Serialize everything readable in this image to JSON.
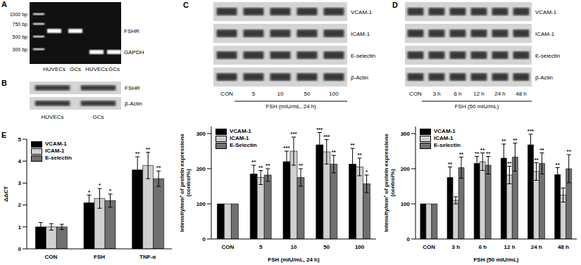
{
  "gels": [
    {
      "panel": "A",
      "ladder": [
        "1000 bp",
        "750 bp",
        "500 bp",
        "300 bp"
      ],
      "bands": [
        "FSHR",
        "GAPDH"
      ],
      "lanes": [
        "HUVECs",
        "GCs",
        "HUVECs",
        "GCs"
      ]
    },
    {
      "panel": "B",
      "rows": [
        "FSHR",
        "β-Actin"
      ],
      "lanes": [
        "HUVECs",
        "GCs"
      ]
    },
    {
      "panel": "C",
      "rows": [
        "VCAM-1",
        "ICAM-1",
        "E-selectin",
        "β-Actin"
      ],
      "lanes": [
        "CON",
        "5",
        "10",
        "50",
        "100"
      ],
      "caption": "FSH (mIU/mL, 24 h)"
    },
    {
      "panel": "D",
      "rows": [
        "VCAM-1",
        "ICAM-1",
        "E-selectin",
        "β-Actin"
      ],
      "lanes": [
        "CON",
        "3 h",
        "6 h",
        "12 h",
        "24 h",
        "48 h"
      ],
      "caption": "FSH (50 mIU/mL)"
    }
  ],
  "chart_data": [
    {
      "type": "bar",
      "title": "E",
      "y_label": "ΔΔCT",
      "categories": [
        "CON",
        "FSH",
        "TNF-α"
      ],
      "ylim": [
        0,
        5
      ],
      "yticks": [
        0,
        1,
        2,
        3,
        4,
        5
      ],
      "legend": "top-left",
      "series": [
        {
          "name": "VCAM-1",
          "color": "#000000",
          "values": [
            1,
            2.1,
            3.6
          ],
          "errors": [
            0.2,
            0.35,
            0.6
          ],
          "significance": [
            null,
            "*",
            "**"
          ]
        },
        {
          "name": "ICAM-1",
          "color": "#d0d0d0",
          "values": [
            1,
            2.3,
            3.8
          ],
          "errors": [
            0.15,
            0.45,
            0.6
          ],
          "significance": [
            null,
            "*",
            "**"
          ]
        },
        {
          "name": "E-selectin",
          "color": "#707070",
          "values": [
            1,
            2.2,
            3.2
          ],
          "errors": [
            0.12,
            0.3,
            0.35
          ],
          "significance": [
            null,
            "*",
            "**"
          ]
        }
      ]
    },
    {
      "type": "bar",
      "y_label": [
        "Intensity/mm² of protein expressions",
        "(control%)"
      ],
      "x_label": "FSH (mIU/mL, 24 h)",
      "categories": [
        "CON",
        "5",
        "10",
        "50",
        "100"
      ],
      "ylim": [
        0,
        320
      ],
      "yticks": [
        0,
        100,
        200,
        300
      ],
      "legend": "top-left",
      "series": [
        {
          "name": "VCAM-1",
          "color": "#000000",
          "values": [
            100,
            185,
            220,
            268,
            213
          ],
          "errors": [
            null,
            25,
            30,
            35,
            45
          ],
          "significance": [
            null,
            "**",
            "***",
            "***",
            "**"
          ]
        },
        {
          "name": "ICAM-1",
          "color": "#d0d0d0",
          "values": [
            100,
            175,
            250,
            248,
            205
          ],
          "errors": [
            null,
            20,
            40,
            35,
            25
          ],
          "significance": [
            null,
            "**",
            "***",
            "***",
            "**"
          ]
        },
        {
          "name": "E-Selectin",
          "color": "#707070",
          "values": [
            100,
            182,
            175,
            213,
            157
          ],
          "errors": [
            null,
            18,
            25,
            25,
            25
          ],
          "significance": [
            null,
            "**",
            "**",
            "**",
            "*"
          ]
        }
      ]
    },
    {
      "type": "bar",
      "y_label": [
        "Intensity/mm² of protein expressions",
        "(control%)"
      ],
      "x_label": "FSH (50 mIU/mL)",
      "categories": [
        "CON",
        "3 h",
        "6 h",
        "12 h",
        "24 h",
        "48 h"
      ],
      "ylim": [
        0,
        320
      ],
      "yticks": [
        0,
        100,
        200,
        300
      ],
      "legend": "top-left",
      "series": [
        {
          "name": "VCAM-1",
          "color": "#000000",
          "values": [
            100,
            175,
            215,
            230,
            268,
            183
          ],
          "errors": [
            null,
            30,
            20,
            40,
            30,
            20
          ],
          "significance": [
            null,
            "**",
            "**",
            "**",
            "***",
            "**"
          ]
        },
        {
          "name": "ICAM-1",
          "color": "#d0d0d0",
          "values": [
            100,
            110,
            220,
            182,
            192,
            125
          ],
          "errors": [
            null,
            10,
            25,
            25,
            25,
            20
          ],
          "significance": [
            null,
            null,
            "**",
            "**",
            "**",
            null
          ]
        },
        {
          "name": "E-selectin",
          "color": "#707070",
          "values": [
            100,
            203,
            210,
            233,
            215,
            200
          ],
          "errors": [
            null,
            30,
            25,
            40,
            30,
            40
          ],
          "significance": [
            null,
            "**",
            "**",
            "**",
            "**",
            "**"
          ]
        }
      ]
    }
  ]
}
